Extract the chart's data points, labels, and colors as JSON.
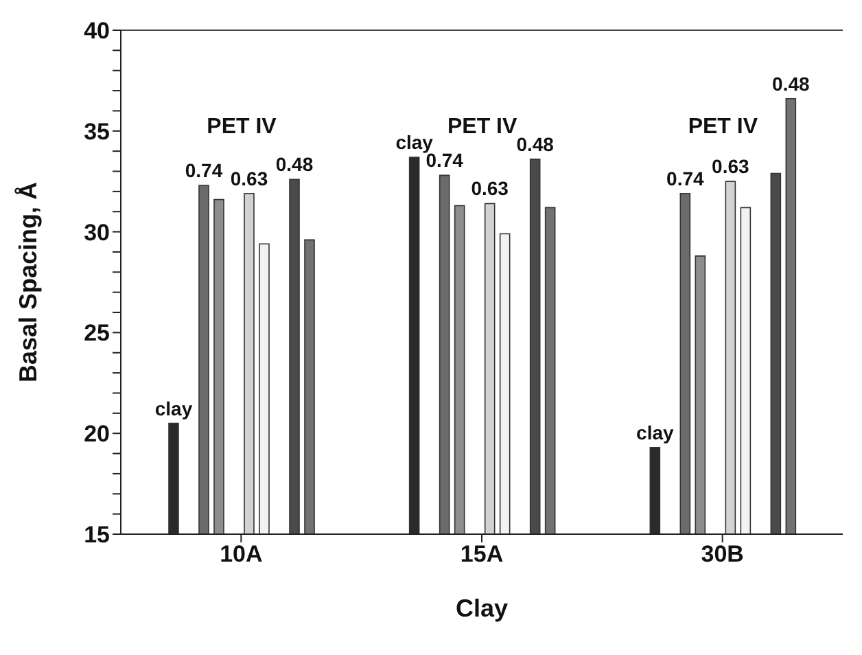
{
  "chart_data": {
    "type": "bar",
    "xlabel": "Clay",
    "ylabel": "Basal Spacing, Å",
    "categories": [
      "10A",
      "15A",
      "30B"
    ],
    "series": [
      {
        "color": "#2a2a2a",
        "values": [
          20.5,
          33.7,
          19.3
        ]
      },
      {
        "color": "#6b6b6b",
        "values": [
          32.3,
          32.8,
          31.9
        ]
      },
      {
        "color": "#8e8e8e",
        "values": [
          31.6,
          31.3,
          28.8
        ]
      },
      {
        "color": "#d2d2d2",
        "values": [
          31.9,
          31.4,
          32.5
        ]
      },
      {
        "color": "#f2f2f2",
        "values": [
          29.4,
          29.9,
          31.2
        ]
      },
      {
        "color": "#4a4a4a",
        "values": [
          32.6,
          33.6,
          32.9
        ]
      },
      {
        "color": "#727272",
        "values": [
          29.6,
          31.2,
          36.6
        ]
      }
    ],
    "annotations": [
      "PET IV",
      "PET IV",
      "PET IV",
      "clay",
      "0.74",
      "0.63",
      "0.48",
      "clay",
      "0.74",
      "0.63",
      "0.48",
      "clay",
      "0.74",
      "0.63",
      "0.48"
    ],
    "ylim": [
      15,
      40
    ],
    "yticks": [
      15,
      {
        "value": 16,
        "label": null
      },
      {
        "value": 17,
        "label": null
      },
      {
        "value": 18,
        "label": null
      },
      {
        "value": 19,
        "label": null
      },
      20,
      {
        "value": 21,
        "label": null
      },
      {
        "value": 22,
        "label": null
      },
      {
        "value": 23,
        "label": null
      },
      {
        "value": 24,
        "label": null
      },
      25,
      {
        "value": 26,
        "label": null
      },
      {
        "value": 27,
        "label": null
      },
      {
        "value": 28,
        "label": null
      },
      {
        "value": 29,
        "label": null
      },
      30,
      {
        "value": 31,
        "label": null
      },
      {
        "value": 32,
        "label": null
      },
      {
        "value": 33,
        "label": null
      },
      {
        "value": 34,
        "label": null
      },
      35,
      {
        "value": 36,
        "label": null
      },
      {
        "value": 37,
        "label": null
      },
      {
        "value": 38,
        "label": null
      },
      {
        "value": 39,
        "label": null
      },
      40
    ],
    "grid": false,
    "legend": false
  }
}
